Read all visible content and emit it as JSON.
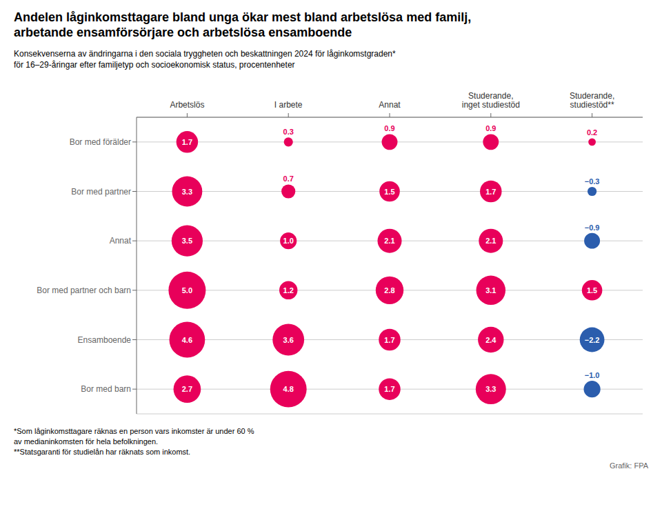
{
  "chart_data": {
    "type": "bubble",
    "title": "Andelen låginkomsttagare bland unga ökar mest bland arbetslösa med familj,\narbetande ensamförsörjare och arbetslösa ensamboende",
    "subtitle": "Konsekvenserna av ändringarna i den sociala tryggheten och beskattningen 2024 för låginkomstgraden*\nför 16–29-åringar efter familjetyp och socioekonomisk status, procentenheter",
    "x_categories": [
      "Arbetslös",
      "I arbete",
      "Annat",
      "Studerande,\ninget studiestöd",
      "Studerande,\nstudiestöd**"
    ],
    "y_categories": [
      "Bor med förälder",
      "Bor med partner",
      "Annat",
      "Bor med partner och barn",
      "Ensamboende",
      "Bor med barn"
    ],
    "values": [
      [
        1.7,
        0.3,
        0.9,
        0.9,
        0.2
      ],
      [
        3.3,
        0.7,
        1.5,
        1.7,
        -0.3
      ],
      [
        3.5,
        1.0,
        2.1,
        2.1,
        -0.9
      ],
      [
        5.0,
        1.2,
        2.8,
        3.1,
        1.5
      ],
      [
        4.6,
        3.6,
        1.7,
        2.4,
        -2.2
      ],
      [
        2.7,
        4.8,
        1.7,
        3.3,
        -1.0
      ]
    ],
    "value_labels": [
      [
        "1.7",
        "0.3",
        "0.9",
        "0.9",
        "0.2"
      ],
      [
        "3.3",
        "0.7",
        "1.5",
        "1.7",
        "−0.3"
      ],
      [
        "3.5",
        "1.0",
        "2.1",
        "2.1",
        "−0.9"
      ],
      [
        "5.0",
        "1.2",
        "2.8",
        "3.1",
        "1.5"
      ],
      [
        "4.6",
        "3.6",
        "1.7",
        "2.4",
        "−2.2"
      ],
      [
        "2.7",
        "4.8",
        "1.7",
        "3.3",
        "−1.0"
      ]
    ],
    "colors": [
      [
        "#E8005A",
        "#E8005A",
        "#E8005A",
        "#E8005A",
        "#E8005A"
      ],
      [
        "#E8005A",
        "#E8005A",
        "#E8005A",
        "#E8005A",
        "#2B5DAD"
      ],
      [
        "#E8005A",
        "#E8005A",
        "#E8005A",
        "#E8005A",
        "#2B5DAD"
      ],
      [
        "#E8005A",
        "#E8005A",
        "#E8005A",
        "#E8005A",
        "#E8005A"
      ],
      [
        "#E8005A",
        "#E8005A",
        "#E8005A",
        "#E8005A",
        "#2B5DAD"
      ],
      [
        "#E8005A",
        "#E8005A",
        "#E8005A",
        "#E8005A",
        "#2B5DAD"
      ]
    ],
    "data_labels": true,
    "grid": true,
    "annotations": [
      "*Som låginkomsttagare räknas en person vars inkomster är under 60 %\nav medianinkomsten för hela befolkningen.\n**Statsgaranti för studielån har räknats som inkomst.",
      "Grafik: FPA"
    ]
  }
}
